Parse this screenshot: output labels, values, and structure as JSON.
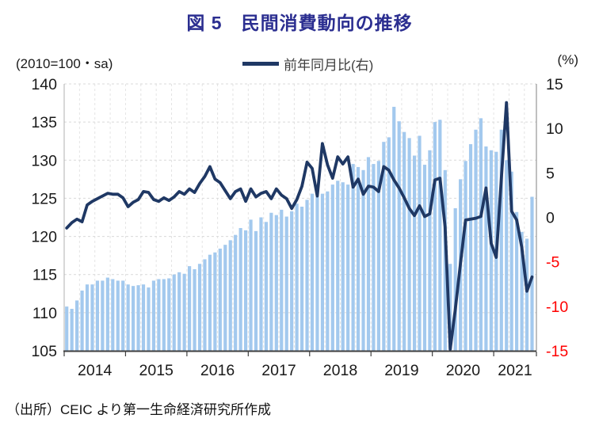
{
  "title": "図 5　民間消費動向の推移",
  "header": {
    "left_axis_unit": "(2010=100・sa)",
    "legend_label": "前年同月比(右)",
    "right_axis_unit": "(%)"
  },
  "source": "（出所）CEIC より第一生命経済研究所作成",
  "colors": {
    "title": "#2b2e90",
    "bar": "#a3c9ee",
    "line": "#1f3864",
    "axis_text": "#1a1a1a",
    "negative_axis_text": "#ff0000",
    "grid": "#d9d9d9",
    "legend_text": "#3f3f3f"
  },
  "chart_data": {
    "type": "bar",
    "subtype": "bar+line combo",
    "frequency": "monthly",
    "period": "2014-01 to 2021-08",
    "title": "図 5　民間消費動向の推移",
    "x_year_labels": [
      "2014",
      "2015",
      "2016",
      "2017",
      "2018",
      "2019",
      "2020",
      "2021"
    ],
    "left_axis": {
      "label": "(2010=100・sa)",
      "min": 105,
      "max": 140,
      "ticks": [
        140,
        135,
        130,
        125,
        120,
        115,
        110,
        105
      ]
    },
    "right_axis": {
      "label": "(%)",
      "min": -15,
      "max": 15,
      "ticks": [
        15,
        10,
        5,
        0,
        -5,
        -10,
        -15
      ]
    },
    "grid": "horizontal dashed at left ticks, vertical dashed quarterly",
    "legend_position": "top center",
    "series": [
      {
        "name": "index (2010=100, sa)",
        "type": "bar",
        "axis": "left",
        "values": [
          110.8,
          110.5,
          111.6,
          112.9,
          113.7,
          113.7,
          114.2,
          114.2,
          114.6,
          114.4,
          114.2,
          114.2,
          113.7,
          113.5,
          113.6,
          113.7,
          113.3,
          114.2,
          114.4,
          114.4,
          114.5,
          115.0,
          115.3,
          115.1,
          116.1,
          115.7,
          116.4,
          117.0,
          117.6,
          117.9,
          118.4,
          118.9,
          119.5,
          120.2,
          121.1,
          120.8,
          122.2,
          120.7,
          122.5,
          121.9,
          123.1,
          122.8,
          123.5,
          122.6,
          123.3,
          124.3,
          123.9,
          124.8,
          125.6,
          125.2,
          125.6,
          125.9,
          126.8,
          127.3,
          127.1,
          126.8,
          129.5,
          129.1,
          128.7,
          130.4,
          129.5,
          129.9,
          132.4,
          133.0,
          137.0,
          135.1,
          133.7,
          132.9,
          130.6,
          133.2,
          129.4,
          131.3,
          135.0,
          135.3,
          128.7,
          116.4,
          123.7,
          127.5,
          129.9,
          132.1,
          134.0,
          135.5,
          131.8,
          131.3,
          131.1,
          134.0,
          130.0,
          128.5,
          123.2,
          120.6,
          119.7,
          125.2
        ]
      },
      {
        "name": "前年同月比(右)",
        "type": "line",
        "axis": "right",
        "values": [
          -1.2,
          -0.6,
          -0.2,
          -0.5,
          1.4,
          1.8,
          2.1,
          2.4,
          2.7,
          2.6,
          2.6,
          2.2,
          1.2,
          1.7,
          2.0,
          2.9,
          2.8,
          2.0,
          1.8,
          2.2,
          1.9,
          2.3,
          2.9,
          2.6,
          3.2,
          2.8,
          3.8,
          4.6,
          5.7,
          4.3,
          3.9,
          3.0,
          2.1,
          2.9,
          3.2,
          1.8,
          3.2,
          2.3,
          2.7,
          2.9,
          2.1,
          3.2,
          2.5,
          2.1,
          1.0,
          2.0,
          3.5,
          6.2,
          5.5,
          2.4,
          8.3,
          5.9,
          4.4,
          6.8,
          6.0,
          6.8,
          3.4,
          4.3,
          2.6,
          3.5,
          3.4,
          2.9,
          5.7,
          5.3,
          4.2,
          3.3,
          2.2,
          1.0,
          0.2,
          1.3,
          0.1,
          0.4,
          4.2,
          4.4,
          -1.1,
          -14.8,
          -10.3,
          -5.2,
          -0.3,
          -0.2,
          -0.1,
          0.1,
          3.3,
          -2.9,
          -4.5,
          4.4,
          12.9,
          0.7,
          -0.3,
          -3.4,
          -8.3,
          -6.7
        ]
      }
    ]
  }
}
